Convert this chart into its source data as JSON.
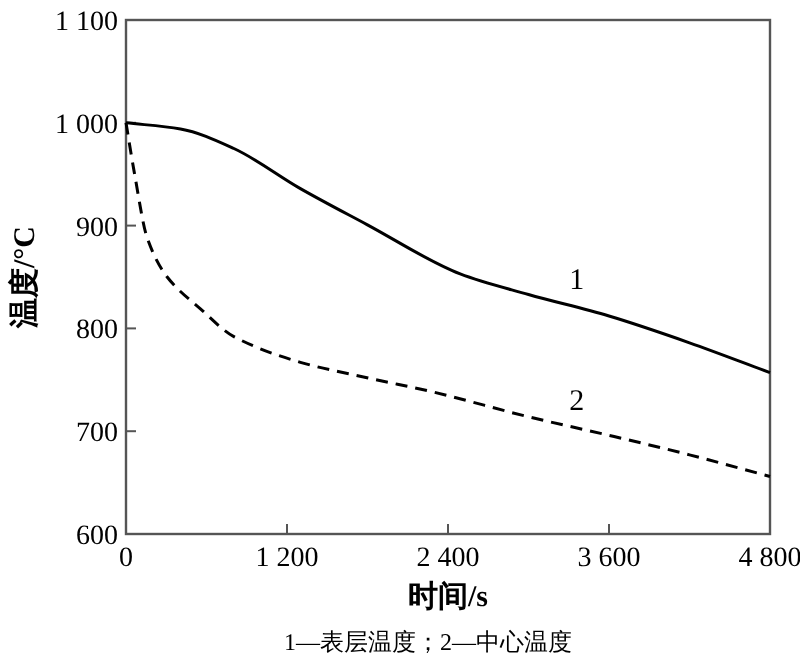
{
  "chart_data": {
    "type": "line",
    "xlabel": "时间/s",
    "ylabel": "温度/°C",
    "xlim": [
      0,
      4800
    ],
    "ylim": [
      600,
      1100
    ],
    "xticks": [
      0,
      {
        "value": 1200,
        "label": "1 200"
      },
      {
        "value": 2400,
        "label": "2 400"
      },
      {
        "value": 3600,
        "label": "3 600"
      },
      {
        "value": 4800,
        "label": "4 800"
      }
    ],
    "yticks": [
      600,
      700,
      800,
      900,
      {
        "value": 1000,
        "label": "1 000"
      },
      {
        "value": 1100,
        "label": "1 100"
      }
    ],
    "series": [
      {
        "name": "1",
        "color": "#000000",
        "line_style": "solid",
        "x": [
          0,
          406,
          804,
          1300,
          1796,
          2491,
          3000,
          3600,
          4200,
          4800
        ],
        "values": [
          1000,
          994,
          975,
          936,
          901,
          853,
          833,
          812,
          786,
          757
        ]
      },
      {
        "name": "2",
        "color": "#000000",
        "line_style": "dashed",
        "x": [
          0,
          60,
          158,
          307,
          555,
          804,
          1300,
          1796,
          2293,
          3000,
          3600,
          4200,
          4800
        ],
        "values": [
          1000,
          953,
          888,
          850,
          819,
          792,
          767,
          752,
          738,
          714,
          696,
          677,
          656
        ]
      }
    ],
    "annotations": [
      "1—表层温度；2—中心温度"
    ]
  }
}
